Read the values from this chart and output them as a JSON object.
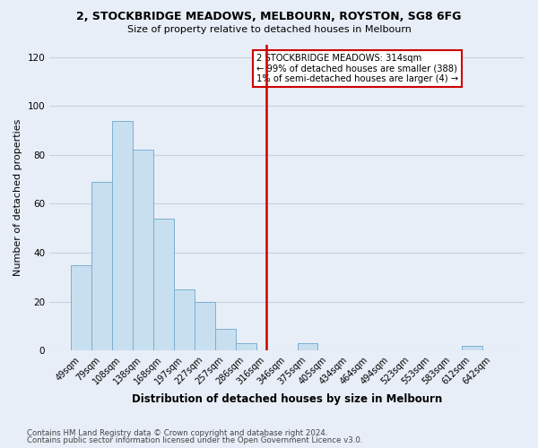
{
  "title": "2, STOCKBRIDGE MEADOWS, MELBOURN, ROYSTON, SG8 6FG",
  "subtitle": "Size of property relative to detached houses in Melbourn",
  "xlabel": "Distribution of detached houses by size in Melbourn",
  "ylabel": "Number of detached properties",
  "bar_color": "#c8dff0",
  "bar_edge_color": "#7ab0d0",
  "categories": [
    "49sqm",
    "79sqm",
    "108sqm",
    "138sqm",
    "168sqm",
    "197sqm",
    "227sqm",
    "257sqm",
    "286sqm",
    "316sqm",
    "346sqm",
    "375sqm",
    "405sqm",
    "434sqm",
    "464sqm",
    "494sqm",
    "523sqm",
    "553sqm",
    "583sqm",
    "612sqm",
    "642sqm"
  ],
  "values": [
    35,
    69,
    94,
    82,
    54,
    25,
    20,
    9,
    3,
    0,
    0,
    3,
    0,
    0,
    0,
    0,
    0,
    0,
    0,
    2,
    0
  ],
  "vline_x_index": 9,
  "vline_color": "#cc0000",
  "annotation_lines": [
    "2 STOCKBRIDGE MEADOWS: 314sqm",
    "← 99% of detached houses are smaller (388)",
    "1% of semi-detached houses are larger (4) →"
  ],
  "annotation_box_color": "white",
  "annotation_box_edge_color": "#cc0000",
  "ylim": [
    0,
    125
  ],
  "yticks": [
    0,
    20,
    40,
    60,
    80,
    100,
    120
  ],
  "footer_line1": "Contains HM Land Registry data © Crown copyright and database right 2024.",
  "footer_line2": "Contains public sector information licensed under the Open Government Licence v3.0.",
  "bg_color": "#e8eef8",
  "grid_color": "#c8d0e0"
}
